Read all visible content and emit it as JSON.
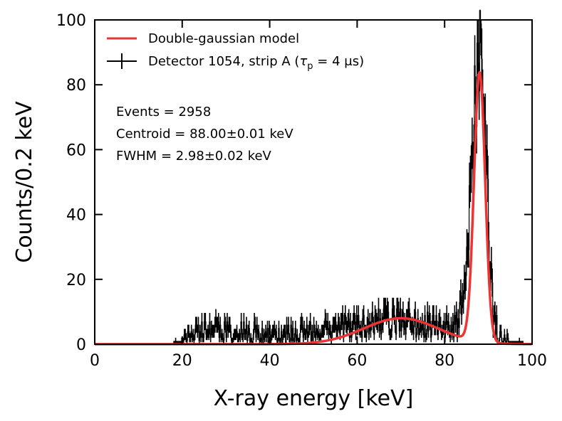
{
  "chart_data": {
    "type": "histogram-with-fit",
    "xlabel": "X-ray energy [keV]",
    "ylabel": "Counts/0.2 keV",
    "xlim": [
      0,
      100
    ],
    "ylim": [
      0,
      100
    ],
    "xticks": [
      0,
      20,
      40,
      60,
      80,
      100
    ],
    "yticks": [
      0,
      20,
      40,
      60,
      80,
      100
    ],
    "tick_labels_x": [
      "0",
      "20",
      "40",
      "60",
      "80",
      "100"
    ],
    "tick_labels_y": [
      "0",
      "20",
      "40",
      "60",
      "80",
      "100"
    ],
    "grid": false,
    "legend": {
      "placement": "top-left",
      "entries": [
        {
          "label": "Double-gaussian model",
          "color": "#ee3333",
          "style": "line"
        },
        {
          "label_prefix": "Detector 1054, strip A (",
          "tau_symbol": "τ",
          "tau_subscript": "p",
          "label_suffix": " = 4 μs)",
          "color": "#000000",
          "style": "errorbar"
        }
      ]
    },
    "annotations": [
      "Events = 2958",
      "Centroid = 88.00±0.01 keV",
      "FWHM = 2.98±0.02 keV"
    ],
    "series": [
      {
        "name": "Double-gaussian model",
        "color": "#ee3333",
        "components": [
          {
            "kind": "gaussian",
            "amplitude": 83,
            "mean": 88.0,
            "fwhm": 2.98
          },
          {
            "kind": "gaussian",
            "amplitude": 8,
            "mean": 70,
            "sigma": 8.5
          }
        ],
        "x_range": [
          0,
          100
        ]
      },
      {
        "name": "Detector 1054, strip A",
        "color": "#000000",
        "bin_width": 0.2,
        "x_start": 18,
        "x_end": 98,
        "approx_envelope": [
          [
            18,
            0
          ],
          [
            20,
            1
          ],
          [
            22,
            3
          ],
          [
            24,
            4
          ],
          [
            30,
            4
          ],
          [
            40,
            3
          ],
          [
            45,
            3
          ],
          [
            55,
            5
          ],
          [
            65,
            7
          ],
          [
            72,
            7
          ],
          [
            80,
            5
          ],
          [
            83,
            6
          ],
          [
            85,
            25
          ],
          [
            86,
            55
          ],
          [
            87,
            78
          ],
          [
            88,
            90
          ],
          [
            89,
            70
          ],
          [
            90,
            35
          ],
          [
            91,
            8
          ],
          [
            93,
            1
          ],
          [
            98,
            0
          ]
        ]
      }
    ]
  }
}
